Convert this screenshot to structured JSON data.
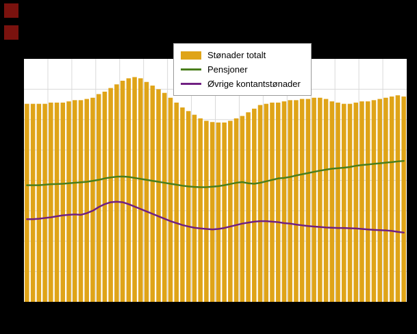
{
  "legend": {
    "items": [
      {
        "label": "Stønader totalt",
        "type": "bar",
        "color": "#dfa418"
      },
      {
        "label": "Pensjoner",
        "type": "line",
        "color": "#4a7e1c"
      },
      {
        "label": "Øvrige kontantstønader",
        "type": "line",
        "color": "#702082"
      }
    ]
  },
  "colors": {
    "background": "#000000",
    "plot_background": "#ffffff",
    "gridline": "#d9d9d9",
    "bar": "#dfa418",
    "pension_line": "#4a7e1c",
    "other_benefits_line": "#702082",
    "decoration_square": "#7a120e",
    "legend_border": "#9a9a9a",
    "legend_text": "#000000"
  },
  "chart_data": {
    "type": "bar",
    "note": "No axis tick labels are visible in the screenshot; values are expressed as percent of plot height.",
    "value_unit": "percent_of_plot_height",
    "ylim": [
      0,
      100
    ],
    "grid": {
      "horizontal_lines": 7,
      "vertical_every": 4,
      "grid_on": true
    },
    "legend_position": "top-center",
    "n_points": 64,
    "series": [
      {
        "name": "Stønader totalt",
        "type": "bar",
        "color": "#dfa418",
        "values": [
          81.5,
          81.5,
          81.5,
          81.5,
          82,
          82,
          82,
          82.5,
          83,
          83,
          83.5,
          84,
          85.5,
          86.5,
          88,
          89.5,
          91,
          92,
          92.5,
          92,
          90.5,
          89,
          87.5,
          86,
          84,
          82,
          80,
          78.5,
          77,
          75.5,
          74.5,
          74,
          73.8,
          73.8,
          74.5,
          75.5,
          76.5,
          78,
          79.5,
          81,
          81.5,
          82,
          82,
          82.5,
          83,
          83,
          83.5,
          83.5,
          84,
          84,
          83.5,
          82.5,
          82,
          81.5,
          81.5,
          82,
          82.5,
          82.5,
          83,
          83.5,
          84,
          84.5,
          85,
          84.5
        ]
      },
      {
        "name": "Pensjoner",
        "type": "line",
        "color": "#4a7e1c",
        "values": [
          48,
          48,
          48,
          48.2,
          48.4,
          48.5,
          48.6,
          48.8,
          49,
          49.2,
          49.4,
          49.8,
          50.2,
          50.8,
          51.2,
          51.5,
          51.6,
          51.4,
          51,
          50.6,
          50.2,
          49.8,
          49.4,
          49,
          48.6,
          48.2,
          47.8,
          47.5,
          47.3,
          47.2,
          47.2,
          47.4,
          47.6,
          48,
          48.5,
          49,
          49.3,
          48.8,
          48.6,
          49,
          49.6,
          50.2,
          50.8,
          51,
          51.4,
          52,
          52.5,
          53,
          53.5,
          54,
          54.4,
          54.8,
          55,
          55.2,
          55.5,
          56,
          56.3,
          56.5,
          56.8,
          57,
          57.3,
          57.5,
          57.8,
          58
        ]
      },
      {
        "name": "Øvrige kontantstønader",
        "type": "line",
        "color": "#702082",
        "values": [
          34,
          34,
          34.2,
          34.5,
          34.8,
          35.2,
          35.6,
          35.8,
          36,
          35.8,
          36.5,
          37.5,
          39,
          40.2,
          41,
          41.2,
          41,
          40.2,
          39.2,
          38.2,
          37.2,
          36.2,
          35.2,
          34.2,
          33.2,
          32.4,
          31.6,
          31,
          30.5,
          30.2,
          30,
          29.8,
          30,
          30.4,
          31,
          31.6,
          32.2,
          32.6,
          33,
          33.2,
          33.2,
          33,
          32.8,
          32.4,
          32.2,
          31.8,
          31.5,
          31.2,
          31,
          30.8,
          30.6,
          30.5,
          30.4,
          30.4,
          30.3,
          30.2,
          30,
          29.8,
          29.6,
          29.5,
          29.4,
          29.2,
          28.8,
          28.5
        ]
      }
    ]
  }
}
